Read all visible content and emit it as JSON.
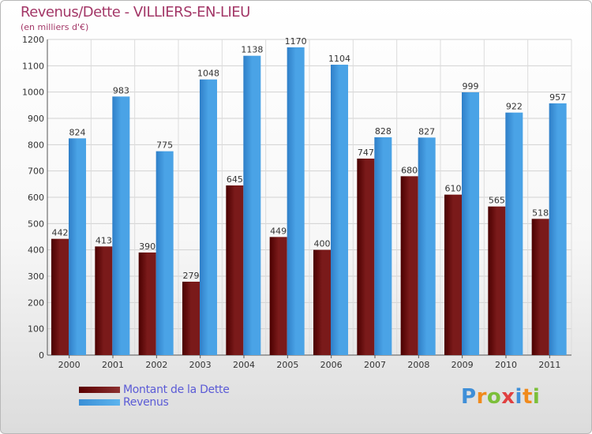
{
  "colors": {
    "title": "#a33767",
    "dette": "#7a1a1a",
    "dette_dark": "#4a0000",
    "revenus": "#4aa3e6",
    "revenus_dark": "#2f7fc8",
    "legend_text": "#5b5bd6"
  },
  "logo": {
    "letters": [
      "P",
      "r",
      "o",
      "x",
      "i",
      "t",
      "i"
    ],
    "colors": [
      "#3f8fd8",
      "#f08a1c",
      "#7cbf3a",
      "#e04040",
      "#3f8fd8",
      "#f08a1c",
      "#7cbf3a"
    ]
  },
  "chart_data": {
    "type": "bar",
    "title": "Revenus/Dette - VILLIERS-EN-LIEU",
    "subtitle": "(en milliers d'€)",
    "categories": [
      "2000",
      "2001",
      "2002",
      "2003",
      "2004",
      "2005",
      "2006",
      "2007",
      "2008",
      "2009",
      "2010",
      "2011"
    ],
    "series": [
      {
        "name": "Montant de la Dette",
        "values": [
          442,
          413,
          390,
          279,
          645,
          449,
          400,
          747,
          680,
          610,
          565,
          518
        ]
      },
      {
        "name": "Revenus",
        "values": [
          824,
          983,
          775,
          1048,
          1138,
          1170,
          1104,
          828,
          827,
          999,
          922,
          957
        ]
      }
    ],
    "ylim": [
      0,
      1200
    ],
    "yticks": [
      0,
      100,
      200,
      300,
      400,
      500,
      600,
      700,
      800,
      900,
      1000,
      1100,
      1200
    ],
    "grid": true,
    "legend_position": "bottom-left"
  }
}
